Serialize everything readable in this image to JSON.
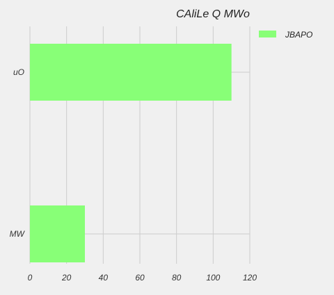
{
  "chart_data": {
    "type": "bar",
    "orientation": "horizontal",
    "title": "CAliLe Q MWo",
    "xlabel": "",
    "ylabel": "",
    "categories": [
      "MW",
      "uO"
    ],
    "series": [
      {
        "name": "JBAPO",
        "values": [
          30,
          110
        ],
        "color": "#88ff77"
      }
    ],
    "xlim": [
      0,
      120
    ],
    "xticks": [
      0,
      20,
      40,
      60,
      80,
      100,
      120
    ],
    "grid": true,
    "legend": "top-right"
  },
  "colors": {
    "background": "#f0f0f0",
    "grid": "#cccccc",
    "text": "#333333"
  }
}
